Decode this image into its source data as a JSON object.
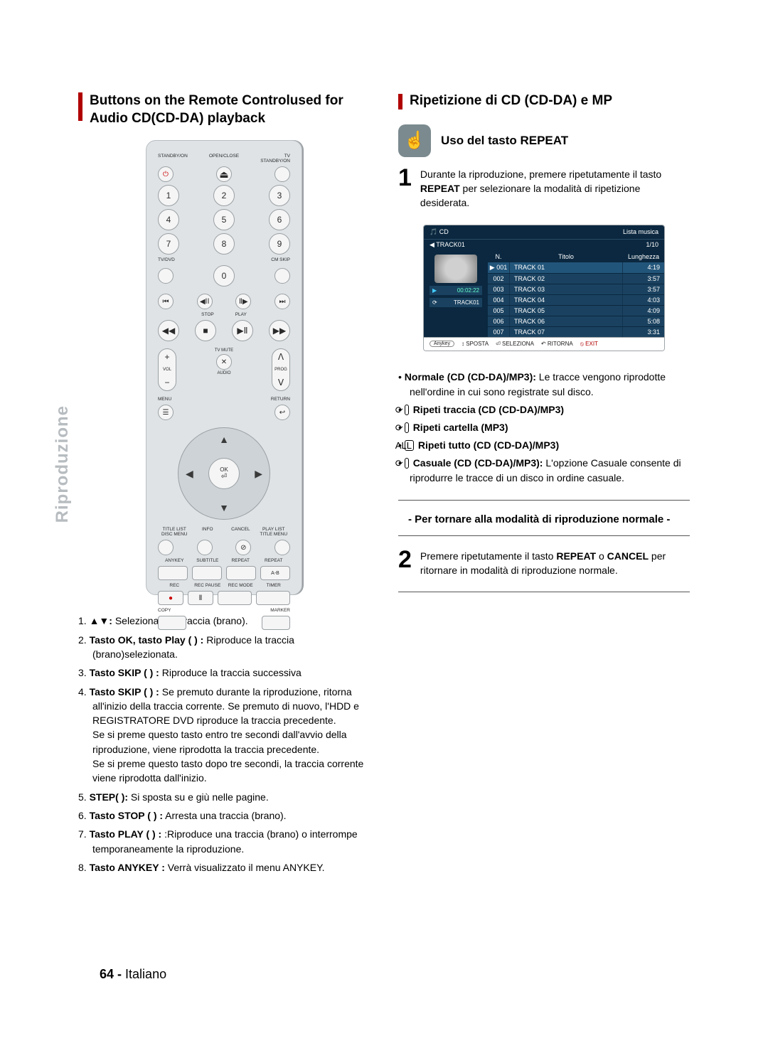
{
  "page_meta": {
    "page_number_label": "64 -",
    "language_label": "Italiano",
    "side_tab": "Riproduzione",
    "text_color": "#000000",
    "accent_red": "#b00000",
    "tab_gray": "#b7bcc0",
    "body_fontsize": 14,
    "heading_fontsize": 19
  },
  "left_column": {
    "heading": "Buttons on the Remote Controlused for Audio CD(CD-DA) playback",
    "remote": {
      "top_labels": {
        "standby": "STANDBY/ON",
        "open": "OPEN/CLOSE",
        "tv_standby": "TV\nSTANDBY/ON"
      },
      "eject": "⏏",
      "num": {
        "1": "1",
        "2": "2",
        "3": "3",
        "4": "4",
        "5": "5",
        "6": "6",
        "7": "7",
        "8": "8",
        "9": "9",
        "0": "0"
      },
      "tvdvd_label": "TV/DVD",
      "cmskip_label": "CM SKIP",
      "transport": {
        "prev": "⏮",
        "rev": "◀ⅠⅠ",
        "fwd": "Ⅱ▶",
        "next": "⏭",
        "rew": "◀◀",
        "stop": "■",
        "play": "▶Ⅱ",
        "ff": "▶▶"
      },
      "stop_label": "STOP",
      "play_label": "PLAY",
      "vol": "VOL",
      "tvmute": "TV MUTE",
      "audio": "AUDIO",
      "prog": "PROG",
      "plus": "+",
      "minus": "−",
      "up": "ᐱ",
      "down": "ᐯ",
      "mute": "✕",
      "menu": "MENU",
      "return": "RETURN",
      "menu_icon": "☰",
      "return_icon": "↩",
      "ok": "OK",
      "arr_up": "▲",
      "arr_down": "▼",
      "arr_left": "◀",
      "arr_right": "▶",
      "bottom_labels": {
        "title_list": "TITLE LIST\nDISC MENU",
        "info": "INFO",
        "cancel": "CANCEL",
        "play_list": "PLAY LIST\nTITLE MENU"
      },
      "cancel_icon": "⊘",
      "row_labels": {
        "anykey": "ANYKEY",
        "subtitle": "SUBTITLE",
        "repeat": "REPEAT",
        "repeat_ab": "REPEAT"
      },
      "ab": "A-B",
      "rec_labels": {
        "rec": "REC",
        "pause": "REC PAUSE",
        "mode": "REC MODE",
        "timer": "TIMER"
      },
      "rec": "●",
      "pause": "Ⅱ",
      "copy": "COPY",
      "marker": "MARKER"
    },
    "list": [
      {
        "prefix": "1. ",
        "bold": "▲▼:",
        "text": " Seleziona una traccia (brano)."
      },
      {
        "prefix": "2. ",
        "bold": "Tasto OK, tasto Play (  ) :",
        "text": " Riproduce la traccia (brano)selezionata."
      },
      {
        "prefix": "3. ",
        "bold": "Tasto SKIP (  ) :",
        "text": " Riproduce la traccia successiva"
      },
      {
        "prefix": "4. ",
        "bold": "Tasto SKIP (  ) :",
        "text": " Se premuto durante la riproduzione, ritorna all'inizio della traccia corrente. Se premuto di nuovo, l'HDD e REGISTRATORE DVD riproduce la traccia precedente.\nSe si preme questo tasto entro tre secondi dall'avvio della riproduzione, viene riprodotta la traccia precedente.\nSe si preme questo tasto dopo tre secondi, la traccia corrente viene riprodotta dall'inizio."
      },
      {
        "prefix": "5. ",
        "bold": "STEP(   ):",
        "text": " Si sposta su e giù nelle pagine."
      },
      {
        "prefix": "6. ",
        "bold": "Tasto STOP (  ) :",
        "text": " Arresta una traccia (brano)."
      },
      {
        "prefix": "7. ",
        "bold": "Tasto PLAY (  ) :",
        "text": " :Riproduce una traccia (brano) o interrompe temporaneamente la riproduzione."
      },
      {
        "prefix": "8. ",
        "bold": "Tasto ANYKEY :",
        "text": " Verrà visualizzato il menu ANYKEY."
      }
    ]
  },
  "right_column": {
    "heading": "Ripetizione di CD (CD-DA) e MP",
    "sub_heading": "Uso del tasto REPEAT",
    "hand_glyph": "☝",
    "step1": {
      "num": "1",
      "pre": "Durante la riproduzione, premere ripetutamente il tasto ",
      "bold": "REPEAT",
      "post": " per selezionare la modalità di ripetizione desiderata."
    },
    "osd": {
      "header_left": "CD",
      "header_right": "Lista musica",
      "sub_left": "TRACK01",
      "sub_right": "1/10",
      "left_panel_time": "00:02:22",
      "left_panel_track": "TRACK01",
      "left_panel_repeat": "⟳",
      "columns": {
        "n": "N.",
        "title": "Titolo",
        "length": "Lunghezza"
      },
      "rows": [
        {
          "n": "001",
          "title": "TRACK 01",
          "len": "4:19",
          "selected": true
        },
        {
          "n": "002",
          "title": "TRACK 02",
          "len": "3:57"
        },
        {
          "n": "003",
          "title": "TRACK 03",
          "len": "3:57"
        },
        {
          "n": "004",
          "title": "TRACK 04",
          "len": "4:03"
        },
        {
          "n": "005",
          "title": "TRACK 05",
          "len": "4:09"
        },
        {
          "n": "006",
          "title": "TRACK 06",
          "len": "5:08"
        },
        {
          "n": "007",
          "title": "TRACK 07",
          "len": "3:31"
        }
      ],
      "footer": {
        "anykey": "Anykey",
        "sposta": "SPOSTA",
        "sel": "SELEZIONA",
        "rit": "RITORNA",
        "exit": "EXIT",
        "sposta_icon": "↕",
        "sel_icon": "⏎",
        "rit_icon": "↶",
        "exit_icon": "⦸"
      },
      "colors": {
        "bg": "#12344f",
        "head": "#0b2840",
        "cell": "#1a4260",
        "sel": "#22557a",
        "text": "#ffffff"
      }
    },
    "bullets": [
      {
        "bold": "Normale (CD (CD-DA)/MP3):",
        "text": " Le tracce vengono riprodotte nell'ordine in cui sono registrate sul disco."
      },
      {
        "icon": "⟳",
        "bold": "Ripeti traccia (CD (CD-DA)/MP3)"
      },
      {
        "icon": "⟳",
        "bold": "Ripeti cartella (MP3)"
      },
      {
        "icon": "ALL",
        "bold": "Ripeti tutto (CD (CD-DA)/MP3)"
      },
      {
        "icon": "⟳",
        "bold": "Casuale (CD (CD-DA)/MP3):",
        "text": " L'opzione Casuale consente di riprodurre le tracce di un disco in ordine casuale."
      }
    ],
    "return_heading": "- Per tornare alla modalità di riproduzione normale -",
    "step2": {
      "num": "2",
      "pre": "Premere ripetutamente il tasto ",
      "bold1": "REPEAT",
      "mid": " o ",
      "bold2": "CANCEL",
      "post": " per ritornare in modalità di riproduzione normale."
    }
  }
}
